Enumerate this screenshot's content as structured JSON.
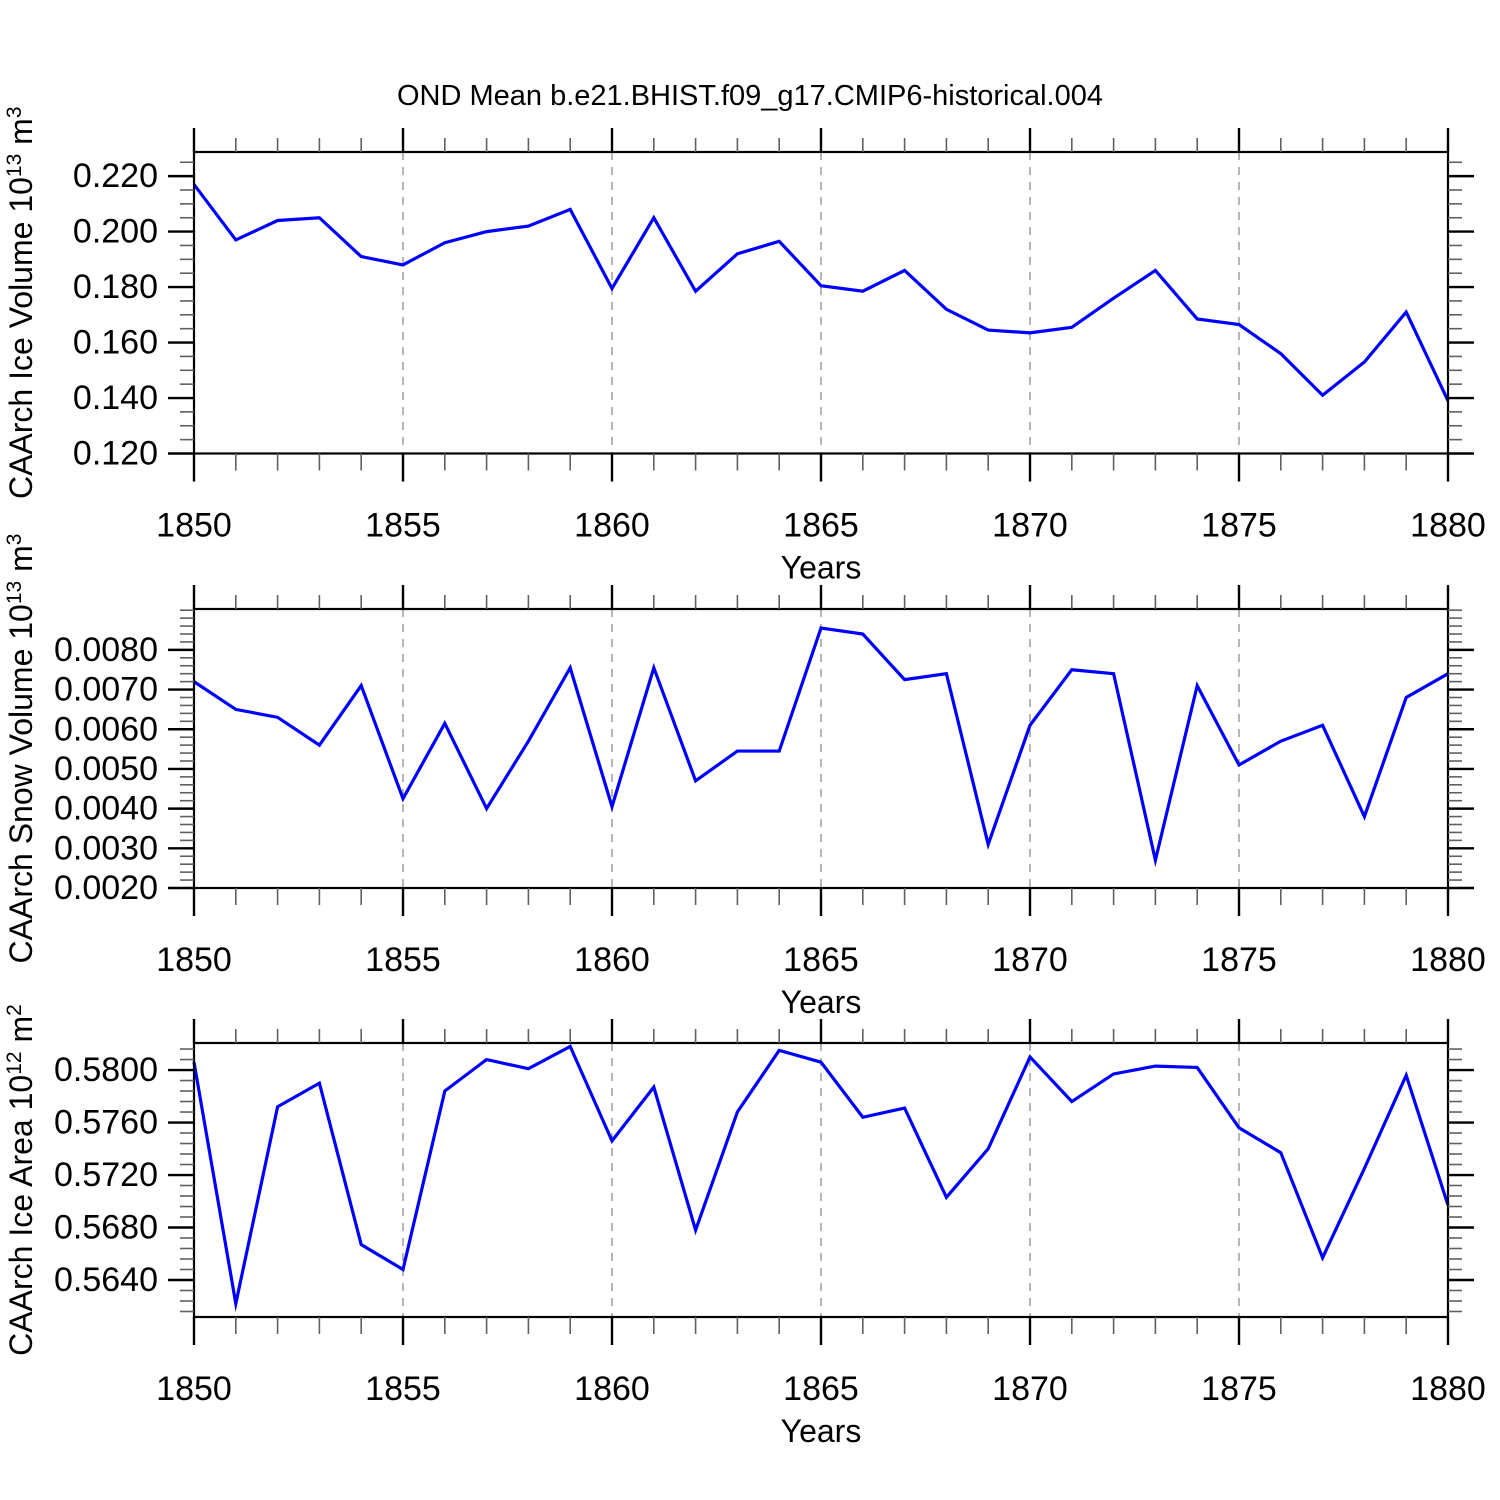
{
  "title": "OND Mean b.e21.BHIST.f09_g17.CMIP6-historical.004",
  "colors": {
    "line": "#0000ff",
    "gridline": "#a3a3a3",
    "axis": "#000000",
    "minor_tick": "#606060",
    "background": "#ffffff"
  },
  "chart_data": [
    {
      "type": "line",
      "ylabel_segments": [
        {
          "t": "CAArch Ice Volume 10"
        },
        {
          "t": "13",
          "sup": true
        },
        {
          "t": " m"
        },
        {
          "t": "3",
          "sup": true
        }
      ],
      "xlabel": "Years",
      "line_color": "#0000ff",
      "x": [
        1850,
        1851,
        1852,
        1853,
        1854,
        1855,
        1856,
        1857,
        1858,
        1859,
        1860,
        1861,
        1862,
        1863,
        1864,
        1865,
        1866,
        1867,
        1868,
        1869,
        1870,
        1871,
        1872,
        1873,
        1874,
        1875,
        1876,
        1877,
        1878,
        1879,
        1880
      ],
      "values": [
        0.217,
        0.197,
        0.204,
        0.205,
        0.191,
        0.188,
        0.196,
        0.2,
        0.202,
        0.208,
        0.1795,
        0.205,
        0.1785,
        0.192,
        0.1965,
        0.1805,
        0.1785,
        0.186,
        0.172,
        0.1645,
        0.1635,
        0.1655,
        0.176,
        0.186,
        0.1685,
        0.1665,
        0.156,
        0.141,
        0.153,
        0.171,
        0.139
      ],
      "xlim": [
        1850,
        1880
      ],
      "ylim": [
        0.12,
        0.2287
      ],
      "xticks": [
        1850,
        1855,
        1860,
        1865,
        1870,
        1875,
        1880
      ],
      "xtick_labels": [
        "1850",
        "1855",
        "1860",
        "1865",
        "1870",
        "1875",
        "1880"
      ],
      "xminor_step": 1,
      "yticks": [
        0.12,
        0.14,
        0.16,
        0.18,
        0.2,
        0.22
      ],
      "ytick_labels": [
        "0.120",
        "0.140",
        "0.160",
        "0.180",
        "0.200",
        "0.220"
      ],
      "yminor_step": 0.005,
      "gridlines_x": [
        1855,
        1860,
        1865,
        1870,
        1875
      ],
      "grid": "vertical-dashed",
      "legend": "none"
    },
    {
      "type": "line",
      "ylabel_segments": [
        {
          "t": "CAArch Snow Volume 10"
        },
        {
          "t": "13",
          "sup": true
        },
        {
          "t": " m"
        },
        {
          "t": "3",
          "sup": true
        }
      ],
      "xlabel": "Years",
      "line_color": "#0000ff",
      "x": [
        1850,
        1851,
        1852,
        1853,
        1854,
        1855,
        1856,
        1857,
        1858,
        1859,
        1860,
        1861,
        1862,
        1863,
        1864,
        1865,
        1866,
        1867,
        1868,
        1869,
        1870,
        1871,
        1872,
        1873,
        1874,
        1875,
        1876,
        1877,
        1878,
        1879,
        1880
      ],
      "values": [
        0.0072,
        0.0065,
        0.0063,
        0.0056,
        0.0071,
        0.00425,
        0.00615,
        0.004,
        0.0057,
        0.00755,
        0.00405,
        0.00755,
        0.0047,
        0.00545,
        0.00545,
        0.00855,
        0.0084,
        0.00725,
        0.0074,
        0.0031,
        0.0061,
        0.0075,
        0.0074,
        0.0027,
        0.0071,
        0.0051,
        0.0057,
        0.0061,
        0.0038,
        0.0068,
        0.0074
      ],
      "xlim": [
        1850,
        1880
      ],
      "ylim": [
        0.002,
        0.00903
      ],
      "xticks": [
        1850,
        1855,
        1860,
        1865,
        1870,
        1875,
        1880
      ],
      "xtick_labels": [
        "1850",
        "1855",
        "1860",
        "1865",
        "1870",
        "1875",
        "1880"
      ],
      "xminor_step": 1,
      "yticks": [
        0.002,
        0.003,
        0.004,
        0.005,
        0.006,
        0.007,
        0.008
      ],
      "ytick_labels": [
        "0.0020",
        "0.0030",
        "0.0040",
        "0.0050",
        "0.0060",
        "0.0070",
        "0.0080"
      ],
      "yminor_step": 0.0002,
      "gridlines_x": [
        1855,
        1860,
        1865,
        1870,
        1875
      ],
      "grid": "vertical-dashed",
      "legend": "none"
    },
    {
      "type": "line",
      "ylabel_segments": [
        {
          "t": "CAArch Ice Area 10"
        },
        {
          "t": "12",
          "sup": true
        },
        {
          "t": " m"
        },
        {
          "t": "2",
          "sup": true
        }
      ],
      "xlabel": "Years",
      "line_color": "#0000ff",
      "x": [
        1850,
        1851,
        1852,
        1853,
        1854,
        1855,
        1856,
        1857,
        1858,
        1859,
        1860,
        1861,
        1862,
        1863,
        1864,
        1865,
        1866,
        1867,
        1868,
        1869,
        1870,
        1871,
        1872,
        1873,
        1874,
        1875,
        1876,
        1877,
        1878,
        1879,
        1880
      ],
      "values": [
        0.5806,
        0.5622,
        0.5772,
        0.579,
        0.5667,
        0.5648,
        0.5784,
        0.5808,
        0.5801,
        0.5818,
        0.5746,
        0.5787,
        0.5678,
        0.5768,
        0.5815,
        0.5806,
        0.5764,
        0.5771,
        0.5703,
        0.574,
        0.581,
        0.5776,
        0.5797,
        0.5803,
        0.5802,
        0.5756,
        0.5737,
        0.5657,
        0.5725,
        0.5796,
        0.5697
      ],
      "xlim": [
        1850,
        1880
      ],
      "ylim": [
        0.56118,
        0.58206
      ],
      "xticks": [
        1850,
        1855,
        1860,
        1865,
        1870,
        1875,
        1880
      ],
      "xtick_labels": [
        "1850",
        "1855",
        "1860",
        "1865",
        "1870",
        "1875",
        "1880"
      ],
      "xminor_step": 1,
      "yticks": [
        0.564,
        0.568,
        0.572,
        0.576,
        0.58
      ],
      "ytick_labels": [
        "0.5640",
        "0.5680",
        "0.5720",
        "0.5760",
        "0.5800"
      ],
      "yminor_step": 0.0008,
      "gridlines_x": [
        1855,
        1860,
        1865,
        1870,
        1875
      ],
      "grid": "vertical-dashed",
      "legend": "none"
    }
  ]
}
